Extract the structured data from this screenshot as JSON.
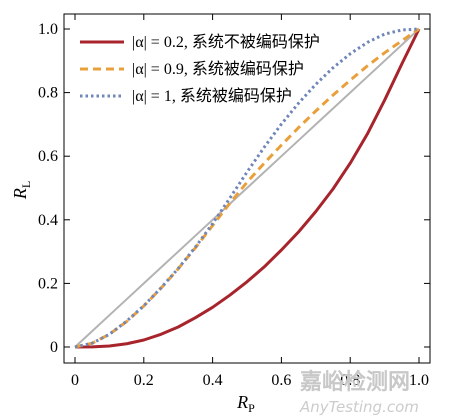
{
  "chart_data": {
    "type": "line",
    "xlabel": "R",
    "xlabel_sub": "P",
    "ylabel": "R",
    "ylabel_sub": "L",
    "xlim": [
      0,
      1
    ],
    "ylim": [
      0,
      1
    ],
    "xticks": [
      "0",
      "0.2",
      "0.4",
      "0.6",
      "0.8",
      "1.0"
    ],
    "yticks": [
      "0",
      "0.2",
      "0.4",
      "0.6",
      "0.8",
      "1.0"
    ],
    "grid": false,
    "legend_position": "top-left",
    "x": [
      0,
      0.05,
      0.1,
      0.15,
      0.2,
      0.25,
      0.3,
      0.35,
      0.4,
      0.45,
      0.5,
      0.55,
      0.6,
      0.65,
      0.7,
      0.75,
      0.8,
      0.85,
      0.9,
      0.95,
      1.0
    ],
    "series": [
      {
        "name": "|α| = 0.2, 系统不被编码保护",
        "color": "#a8242c",
        "dash": "solid",
        "values": [
          0,
          0.0004,
          0.003,
          0.01,
          0.022,
          0.04,
          0.063,
          0.092,
          0.125,
          0.163,
          0.205,
          0.252,
          0.305,
          0.362,
          0.426,
          0.497,
          0.578,
          0.67,
          0.776,
          0.89,
          1.0
        ]
      },
      {
        "name": "|α| = 0.9, 系统被编码保护",
        "color": "#e9a03a",
        "dash": "dashed",
        "values": [
          0,
          0.012,
          0.04,
          0.08,
          0.129,
          0.185,
          0.246,
          0.312,
          0.382,
          0.452,
          0.518,
          0.578,
          0.635,
          0.69,
          0.742,
          0.792,
          0.839,
          0.884,
          0.925,
          0.963,
          1.0
        ]
      },
      {
        "name": "|α| = 1, 系统被编码保护",
        "color": "#6f86b9",
        "dash": "dotted",
        "values": [
          0,
          0.012,
          0.04,
          0.081,
          0.13,
          0.186,
          0.247,
          0.314,
          0.388,
          0.468,
          0.55,
          0.628,
          0.701,
          0.767,
          0.826,
          0.878,
          0.922,
          0.958,
          0.984,
          0.997,
          1.0
        ]
      },
      {
        "name": "",
        "color": "#b3b3b3",
        "dash": "solid",
        "values": [
          0,
          0.05,
          0.1,
          0.15,
          0.2,
          0.25,
          0.3,
          0.35,
          0.4,
          0.45,
          0.5,
          0.55,
          0.6,
          0.65,
          0.7,
          0.75,
          0.8,
          0.85,
          0.9,
          0.95,
          1.0
        ]
      }
    ]
  },
  "watermark": {
    "line1": "嘉峪检测网",
    "line2": "AnyTesting.com"
  }
}
